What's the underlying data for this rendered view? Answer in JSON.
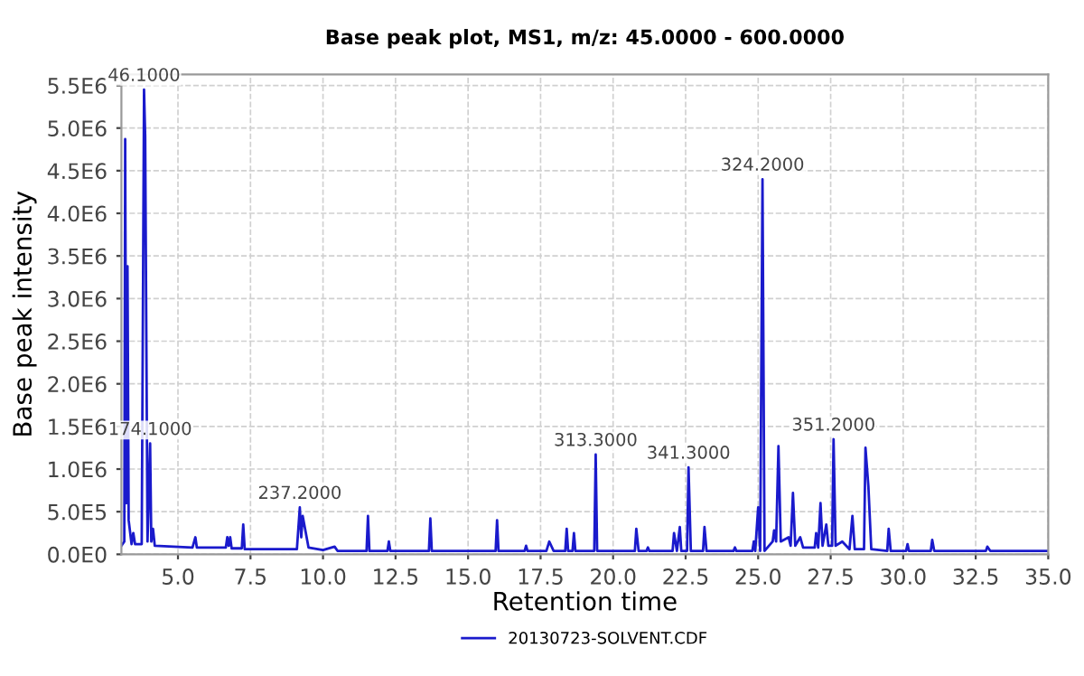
{
  "chart_data": {
    "type": "line",
    "title": "Base peak plot, MS1, m/z: 45.0000 - 600.0000",
    "xlabel": "Retention time",
    "ylabel": "Base peak intensity",
    "xlim": [
      3.05,
      35.0
    ],
    "ylim": [
      0,
      5630000
    ],
    "xticks": [
      {
        "value": 5,
        "label": "5.0"
      },
      {
        "value": 7.5,
        "label": "7.5"
      },
      {
        "value": 10,
        "label": "10.0"
      },
      {
        "value": 12.5,
        "label": "12.5"
      },
      {
        "value": 15,
        "label": "15.0"
      },
      {
        "value": 17.5,
        "label": "17.5"
      },
      {
        "value": 20,
        "label": "20.0"
      },
      {
        "value": 22.5,
        "label": "22.5"
      },
      {
        "value": 25,
        "label": "25.0"
      },
      {
        "value": 27.5,
        "label": "27.5"
      },
      {
        "value": 30,
        "label": "30.0"
      },
      {
        "value": 32.5,
        "label": "32.5"
      },
      {
        "value": 35,
        "label": "35.0"
      }
    ],
    "yticks": [
      {
        "value": 0,
        "label": "0.0E0"
      },
      {
        "value": 500000,
        "label": "5.0E5"
      },
      {
        "value": 1000000,
        "label": "1.0E6"
      },
      {
        "value": 1500000,
        "label": "1.5E6"
      },
      {
        "value": 2000000,
        "label": "2.0E6"
      },
      {
        "value": 2500000,
        "label": "2.5E6"
      },
      {
        "value": 3000000,
        "label": "3.0E6"
      },
      {
        "value": 3500000,
        "label": "3.5E6"
      },
      {
        "value": 4000000,
        "label": "4.0E6"
      },
      {
        "value": 4500000,
        "label": "4.5E6"
      },
      {
        "value": 5000000,
        "label": "5.0E6"
      },
      {
        "value": 5500000,
        "label": "5.5E6"
      }
    ],
    "grid": true,
    "legend": "bottom",
    "marker": "none",
    "line_style": "solid",
    "annotations": [
      {
        "text": "46.1000",
        "x": 3.83,
        "y": 5450000
      },
      {
        "text": "174.1000",
        "x": 4.04,
        "y": 1300000
      },
      {
        "text": "237.2000",
        "x": 9.2,
        "y": 550000
      },
      {
        "text": "313.3000",
        "x": 19.4,
        "y": 1170000
      },
      {
        "text": "341.3000",
        "x": 22.6,
        "y": 1020000
      },
      {
        "text": "324.2000",
        "x": 25.15,
        "y": 4400000
      },
      {
        "text": "351.2000",
        "x": 27.6,
        "y": 1350000
      }
    ],
    "series": [
      {
        "name": "20130723-SOLVENT.CDF",
        "color": "#1a1acc",
        "x": [
          3.05,
          3.15,
          3.18,
          3.22,
          3.26,
          3.3,
          3.4,
          3.46,
          3.52,
          3.75,
          3.83,
          3.87,
          3.95,
          4.04,
          4.08,
          4.14,
          4.2,
          5.5,
          5.6,
          5.65,
          6.65,
          6.7,
          6.75,
          6.8,
          6.85,
          7.2,
          7.25,
          7.3,
          9.1,
          9.2,
          9.25,
          9.3,
          9.5,
          10.0,
          10.4,
          10.5,
          11.5,
          11.55,
          11.6,
          12.22,
          12.27,
          12.32,
          13.65,
          13.7,
          13.75,
          15.95,
          16.0,
          16.05,
          16.95,
          17.0,
          17.05,
          17.7,
          17.8,
          17.95,
          18.35,
          18.4,
          18.45,
          18.6,
          18.65,
          18.7,
          19.35,
          19.4,
          19.45,
          20.75,
          20.8,
          20.88,
          21.15,
          21.2,
          21.25,
          22.05,
          22.1,
          22.2,
          22.3,
          22.35,
          22.55,
          22.6,
          22.68,
          23.1,
          23.15,
          23.22,
          24.15,
          24.2,
          24.25,
          24.8,
          24.85,
          24.9,
          25.0,
          25.07,
          25.15,
          25.22,
          25.5,
          25.55,
          25.62,
          25.7,
          25.78,
          26.05,
          26.12,
          26.2,
          26.28,
          26.45,
          26.55,
          26.95,
          27.0,
          27.07,
          27.15,
          27.22,
          27.35,
          27.42,
          27.55,
          27.6,
          27.67,
          27.9,
          28.15,
          28.25,
          28.33,
          28.65,
          28.7,
          28.8,
          28.9,
          29.45,
          29.5,
          29.57,
          30.1,
          30.15,
          30.2,
          30.95,
          31.0,
          31.07,
          32.85,
          32.9,
          33.0,
          35.0
        ],
        "values": [
          100000,
          150000,
          4870000,
          600000,
          3380000,
          400000,
          120000,
          250000,
          120000,
          120000,
          5450000,
          4900000,
          150000,
          1300000,
          150000,
          300000,
          100000,
          80000,
          200000,
          80000,
          80000,
          200000,
          100000,
          200000,
          70000,
          70000,
          350000,
          60000,
          60000,
          550000,
          200000,
          450000,
          80000,
          50000,
          90000,
          40000,
          40000,
          450000,
          40000,
          40000,
          150000,
          40000,
          40000,
          420000,
          40000,
          40000,
          400000,
          40000,
          40000,
          100000,
          40000,
          40000,
          150000,
          40000,
          40000,
          300000,
          40000,
          40000,
          250000,
          40000,
          40000,
          1170000,
          40000,
          40000,
          300000,
          40000,
          40000,
          80000,
          40000,
          40000,
          250000,
          40000,
          320000,
          40000,
          40000,
          1020000,
          40000,
          40000,
          320000,
          40000,
          40000,
          80000,
          40000,
          40000,
          150000,
          40000,
          550000,
          40000,
          4400000,
          40000,
          150000,
          280000,
          150000,
          1270000,
          150000,
          200000,
          100000,
          720000,
          100000,
          200000,
          80000,
          80000,
          250000,
          80000,
          600000,
          100000,
          350000,
          100000,
          100000,
          1350000,
          100000,
          150000,
          60000,
          450000,
          60000,
          60000,
          1250000,
          800000,
          60000,
          40000,
          300000,
          40000,
          40000,
          120000,
          40000,
          40000,
          170000,
          40000,
          40000,
          90000,
          40000,
          40000
        ]
      }
    ]
  }
}
